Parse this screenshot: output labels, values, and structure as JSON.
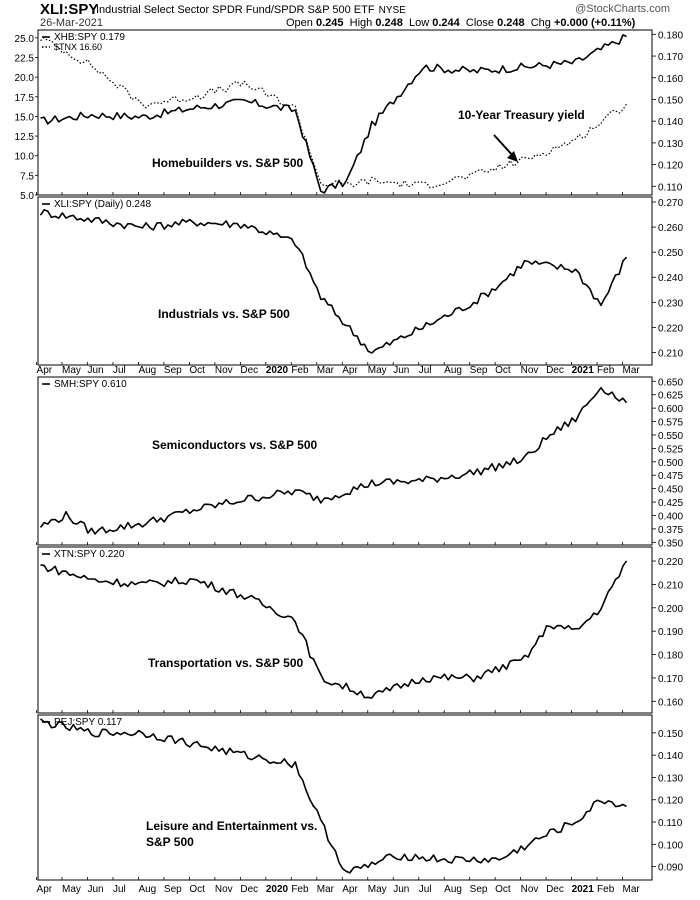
{
  "header": {
    "symbol": "XLI:SPY",
    "description": "Industrial Select Sector SPDR Fund/SPDR S&P 500 ETF",
    "exchange": "NYSE",
    "date": "26-Mar-2021",
    "open_label": "Open",
    "open": "0.245",
    "high_label": "High",
    "high": "0.248",
    "low_label": "Low",
    "low": "0.244",
    "close_label": "Close",
    "close": "0.248",
    "chg_label": "Chg",
    "chg": "+0.000 (+0.11%)",
    "credit": "@StockCharts.com"
  },
  "x_axis": {
    "labels": [
      "Apr",
      "May",
      "Jun",
      "Jul",
      "Aug",
      "Sep",
      "Oct",
      "Nov",
      "Dec",
      "2020",
      "Feb",
      "Mar",
      "Apr",
      "May",
      "Jun",
      "Jul",
      "Aug",
      "Sep",
      "Oct",
      "Nov",
      "Dec",
      "2021",
      "Feb",
      "Mar"
    ],
    "bold_labels": [
      "2020",
      "2021"
    ],
    "range": "Apr 2019 - Mar 2021"
  },
  "chart_data": [
    {
      "type": "line",
      "legend": [
        "XHB:SPY 0.179",
        "$TNX 16.60"
      ],
      "annotations": [
        "Homebuilders vs. S&P 500",
        "10-Year Treasury yield"
      ],
      "x": [
        "Apr 2019",
        "Jun 2019",
        "Aug 2019",
        "Oct 2019",
        "Dec 2019",
        "Feb 2020",
        "Mar 2020",
        "Apr 2020",
        "May 2020",
        "Jul 2020",
        "Sep 2020",
        "Nov 2020",
        "Jan 2021",
        "Mar 2021"
      ],
      "series": [
        {
          "name": "XHB:SPY",
          "axis": "right",
          "style": "solid",
          "values": [
            0.14,
            0.143,
            0.142,
            0.146,
            0.149,
            0.145,
            0.108,
            0.112,
            0.138,
            0.165,
            0.163,
            0.165,
            0.167,
            0.179
          ]
        },
        {
          "name": "$TNX",
          "axis": "left",
          "style": "dotted",
          "values": [
            25.0,
            21.5,
            16.5,
            17.5,
            19.2,
            16.0,
            6.5,
            6.3,
            6.8,
            6.2,
            7.5,
            9.5,
            12.0,
            16.6
          ]
        }
      ],
      "y_left": {
        "ticks": [
          5.0,
          7.5,
          10.0,
          12.5,
          15.0,
          17.5,
          20.0,
          22.5,
          25.0
        ],
        "ylim": [
          5.0,
          26.0
        ]
      },
      "y_right": {
        "ticks": [
          0.11,
          0.12,
          0.13,
          0.14,
          0.15,
          0.16,
          0.17,
          0.18
        ],
        "ylim": [
          0.106,
          0.182
        ]
      }
    },
    {
      "type": "line",
      "legend": [
        "XLI:SPY (Daily) 0.248"
      ],
      "annotations": [
        "Industrials vs. S&P 500"
      ],
      "x": [
        "Apr 2019",
        "Jun 2019",
        "Aug 2019",
        "Oct 2019",
        "Dec 2019",
        "Feb 2020",
        "Mar 2020",
        "May 2020",
        "Jul 2020",
        "Sep 2020",
        "Oct 2020",
        "Nov 2020",
        "Jan 2021",
        "Feb 2021",
        "Mar 2021"
      ],
      "series": [
        {
          "name": "XLI:SPY",
          "axis": "right",
          "style": "solid",
          "values": [
            0.266,
            0.263,
            0.26,
            0.262,
            0.261,
            0.254,
            0.232,
            0.21,
            0.22,
            0.23,
            0.237,
            0.246,
            0.243,
            0.229,
            0.248
          ]
        }
      ],
      "y_right": {
        "ticks": [
          0.21,
          0.22,
          0.23,
          0.24,
          0.25,
          0.26,
          0.27
        ],
        "ylim": [
          0.205,
          0.272
        ]
      }
    },
    {
      "type": "line",
      "legend": [
        "SMH:SPY 0.610"
      ],
      "annotations": [
        "Semiconductors vs. S&P 500"
      ],
      "x": [
        "Apr 2019",
        "May 2019",
        "Jun 2019",
        "Aug 2019",
        "Oct 2019",
        "Dec 2019",
        "Feb 2020",
        "Mar 2020",
        "May 2020",
        "Jul 2020",
        "Sep 2020",
        "Nov 2020",
        "Dec 2020",
        "Jan 2021",
        "Feb 2021",
        "Mar 2021"
      ],
      "series": [
        {
          "name": "SMH:SPY",
          "axis": "right",
          "style": "solid",
          "values": [
            0.38,
            0.4,
            0.37,
            0.385,
            0.41,
            0.43,
            0.445,
            0.43,
            0.46,
            0.465,
            0.48,
            0.505,
            0.55,
            0.58,
            0.64,
            0.61
          ]
        }
      ],
      "y_right": {
        "ticks": [
          0.35,
          0.375,
          0.4,
          0.425,
          0.45,
          0.475,
          0.5,
          0.525,
          0.55,
          0.575,
          0.6,
          0.625,
          0.65
        ],
        "ylim": [
          0.345,
          0.658
        ]
      }
    },
    {
      "type": "line",
      "legend": [
        "XTN:SPY 0.220"
      ],
      "annotations": [
        "Transportation vs. S&P 500"
      ],
      "x": [
        "Apr 2019",
        "Jun 2019",
        "Aug 2019",
        "Oct 2019",
        "Dec 2019",
        "Feb 2020",
        "Mar 2020",
        "May 2020",
        "Jul 2020",
        "Sep 2020",
        "Nov 2020",
        "Dec 2020",
        "Jan 2021",
        "Feb 2021",
        "Mar 2021"
      ],
      "series": [
        {
          "name": "XTN:SPY",
          "axis": "right",
          "style": "solid",
          "values": [
            0.218,
            0.212,
            0.21,
            0.212,
            0.205,
            0.195,
            0.17,
            0.162,
            0.17,
            0.17,
            0.178,
            0.193,
            0.19,
            0.2,
            0.22
          ]
        }
      ],
      "y_right": {
        "ticks": [
          0.16,
          0.17,
          0.18,
          0.19,
          0.2,
          0.21,
          0.22
        ],
        "ylim": [
          0.155,
          0.226
        ]
      }
    },
    {
      "type": "line",
      "legend": [
        "PEJ:SPY 0.117"
      ],
      "annotations": [
        "Leisure and Entertainment vs.",
        "S&P 500"
      ],
      "x": [
        "Apr 2019",
        "Jun 2019",
        "Aug 2019",
        "Oct 2019",
        "Dec 2019",
        "Feb 2020",
        "Mar 2020",
        "Apr 2020",
        "Jun 2020",
        "Aug 2020",
        "Oct 2020",
        "Dec 2020",
        "Jan 2021",
        "Feb 2021",
        "Mar 2021"
      ],
      "series": [
        {
          "name": "PEJ:SPY",
          "axis": "right",
          "style": "solid",
          "values": [
            0.155,
            0.15,
            0.15,
            0.145,
            0.14,
            0.136,
            0.11,
            0.087,
            0.095,
            0.093,
            0.093,
            0.105,
            0.11,
            0.12,
            0.117
          ]
        }
      ],
      "y_right": {
        "ticks": [
          0.09,
          0.1,
          0.11,
          0.12,
          0.13,
          0.14,
          0.15
        ],
        "ylim": [
          0.084,
          0.158
        ]
      }
    }
  ]
}
